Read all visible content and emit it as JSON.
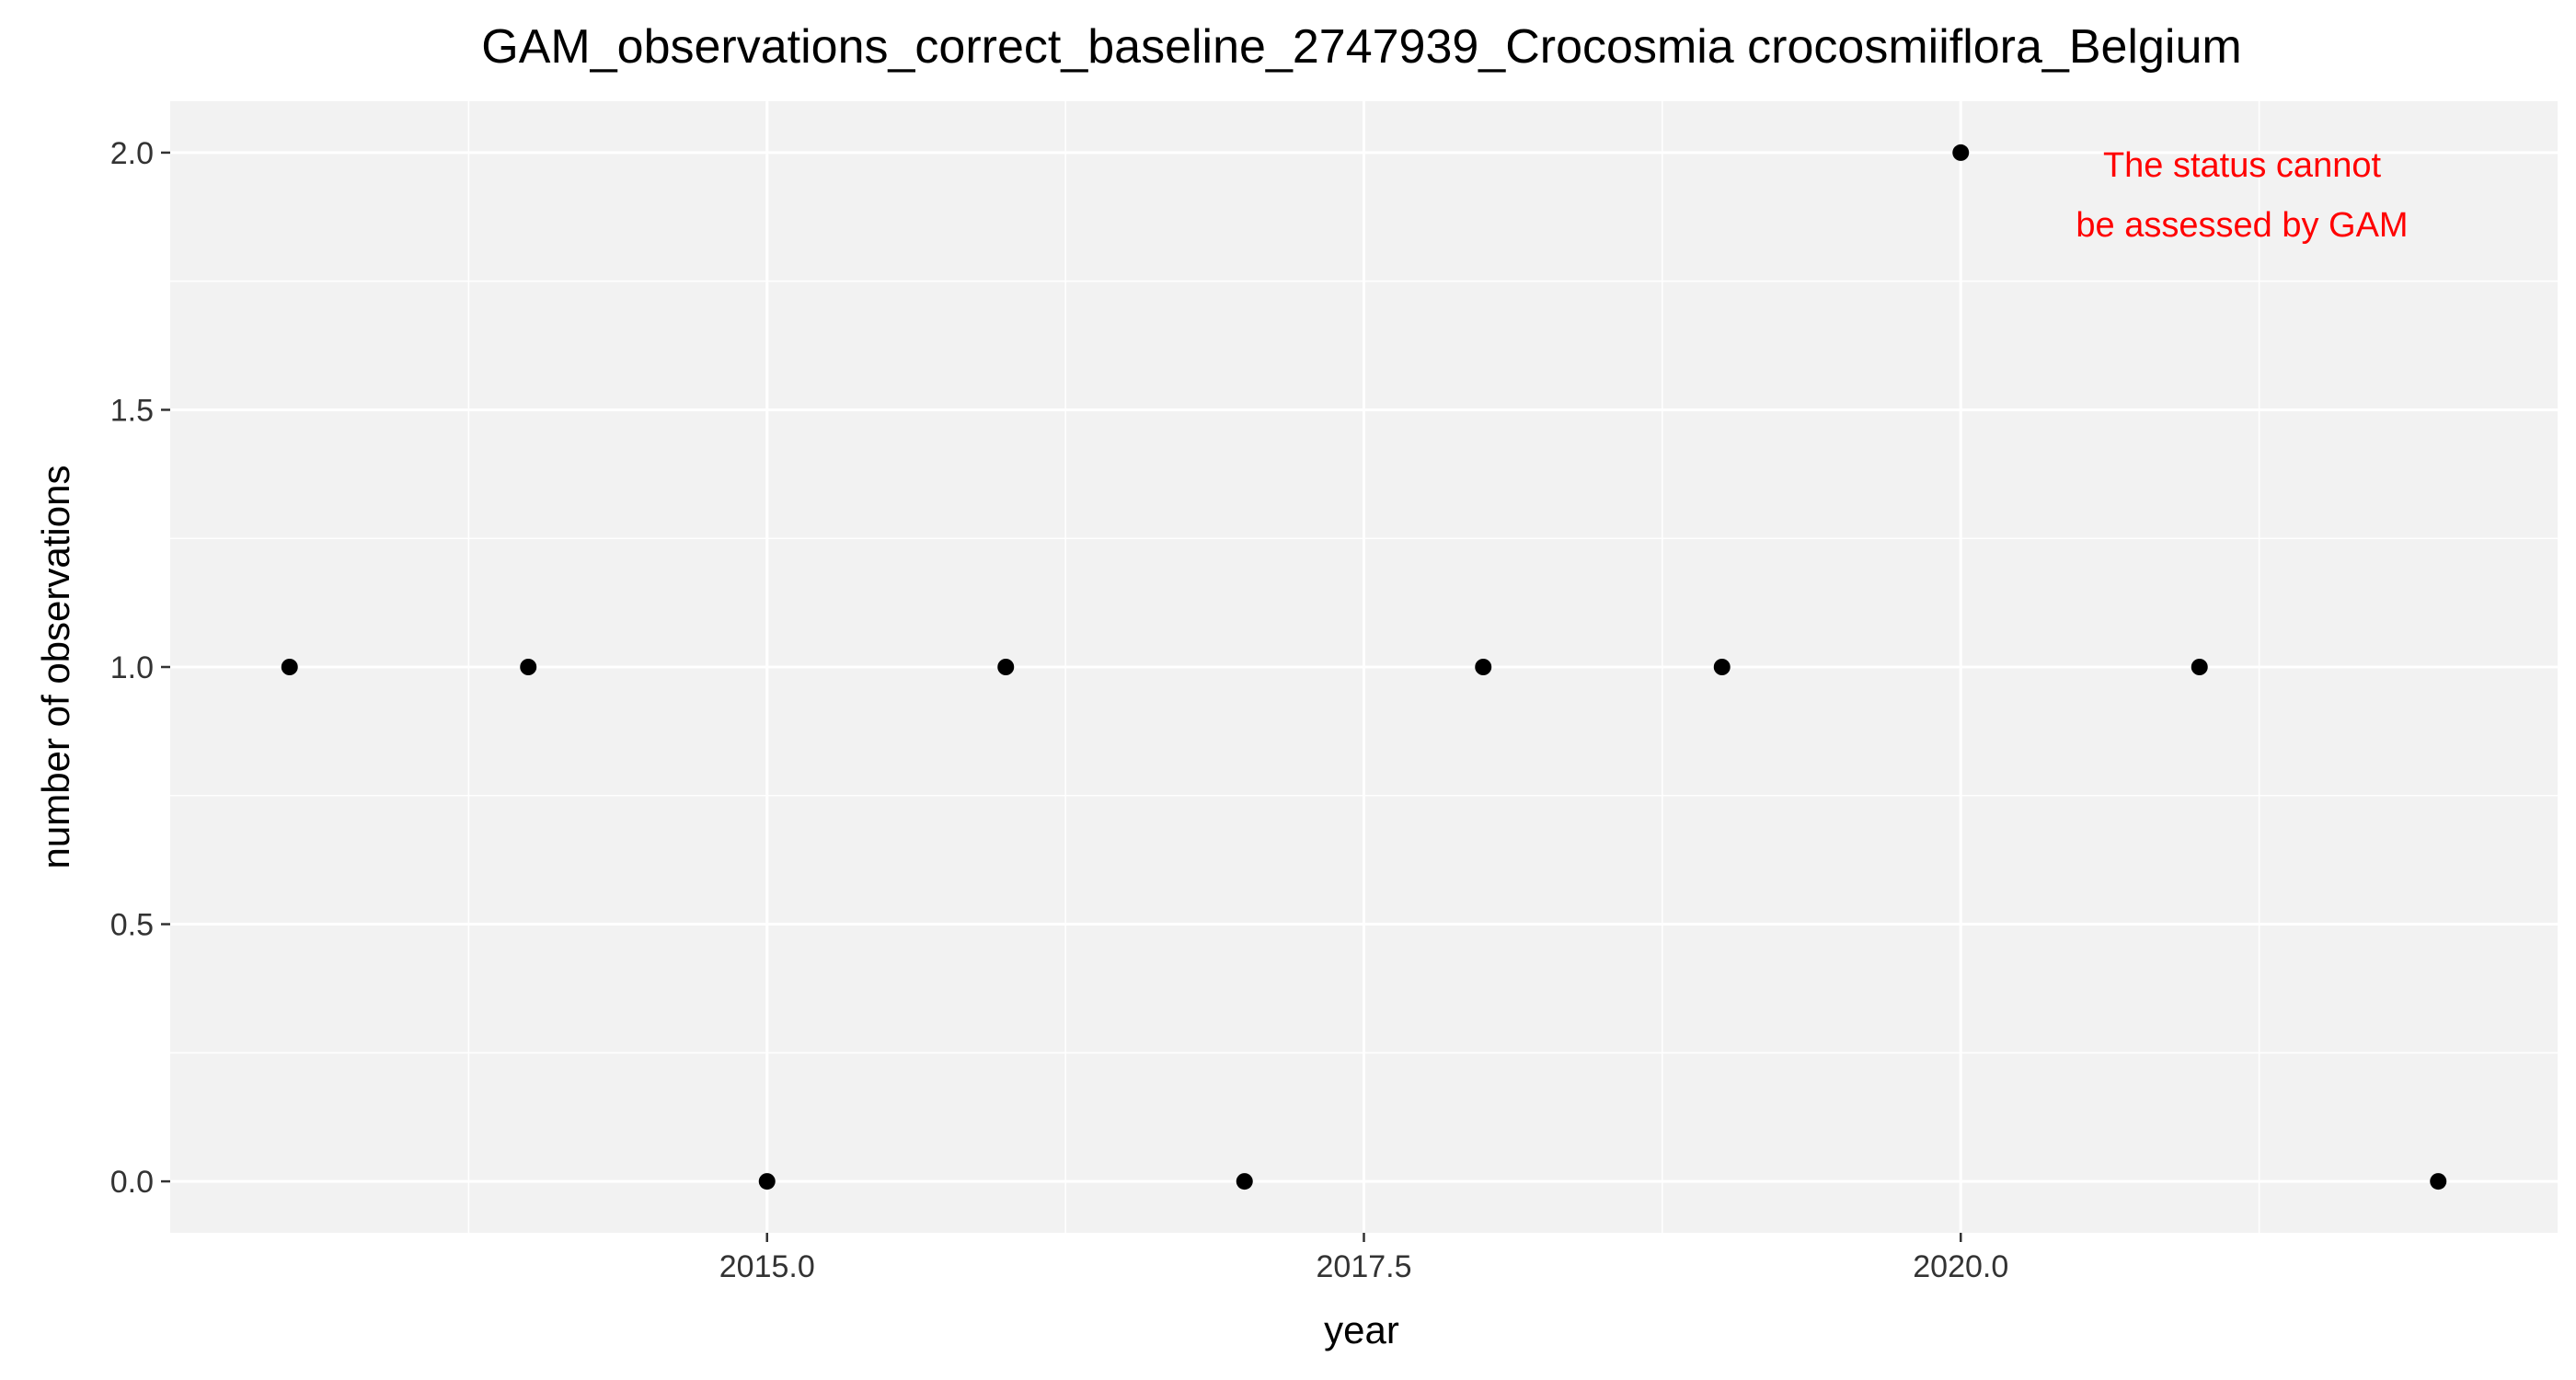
{
  "chart_data": {
    "type": "scatter",
    "title": "GAM_observations_correct_baseline_2747939_Crocosmia crocosmiiflora_Belgium",
    "xlabel": "year",
    "ylabel": "number of observations",
    "xlim": [
      2012.5,
      2022.5
    ],
    "ylim": [
      -0.1,
      2.1
    ],
    "x_ticks": [
      2015.0,
      2017.5,
      2020.0
    ],
    "x_tick_labels": [
      "2015.0",
      "2017.5",
      "2020.0"
    ],
    "y_ticks": [
      0.0,
      0.5,
      1.0,
      1.5,
      2.0
    ],
    "y_tick_labels": [
      "0.0",
      "0.5",
      "1.0",
      "1.5",
      "2.0"
    ],
    "grid": true,
    "legend": "none",
    "series": [
      {
        "x": [
          2013,
          2014,
          2015,
          2016,
          2017,
          2018,
          2019,
          2020,
          2021,
          2022
        ],
        "y": [
          1,
          1,
          0,
          1,
          0,
          1,
          1,
          2,
          1,
          0
        ]
      }
    ],
    "annotation": {
      "lines": [
        "The status cannot",
        "be assessed by GAM"
      ],
      "color": "#FF0000"
    }
  },
  "colors": {
    "panel_background": "#F2F2F2",
    "grid": "#FFFFFF",
    "point": "#000000",
    "text": "#000000"
  }
}
